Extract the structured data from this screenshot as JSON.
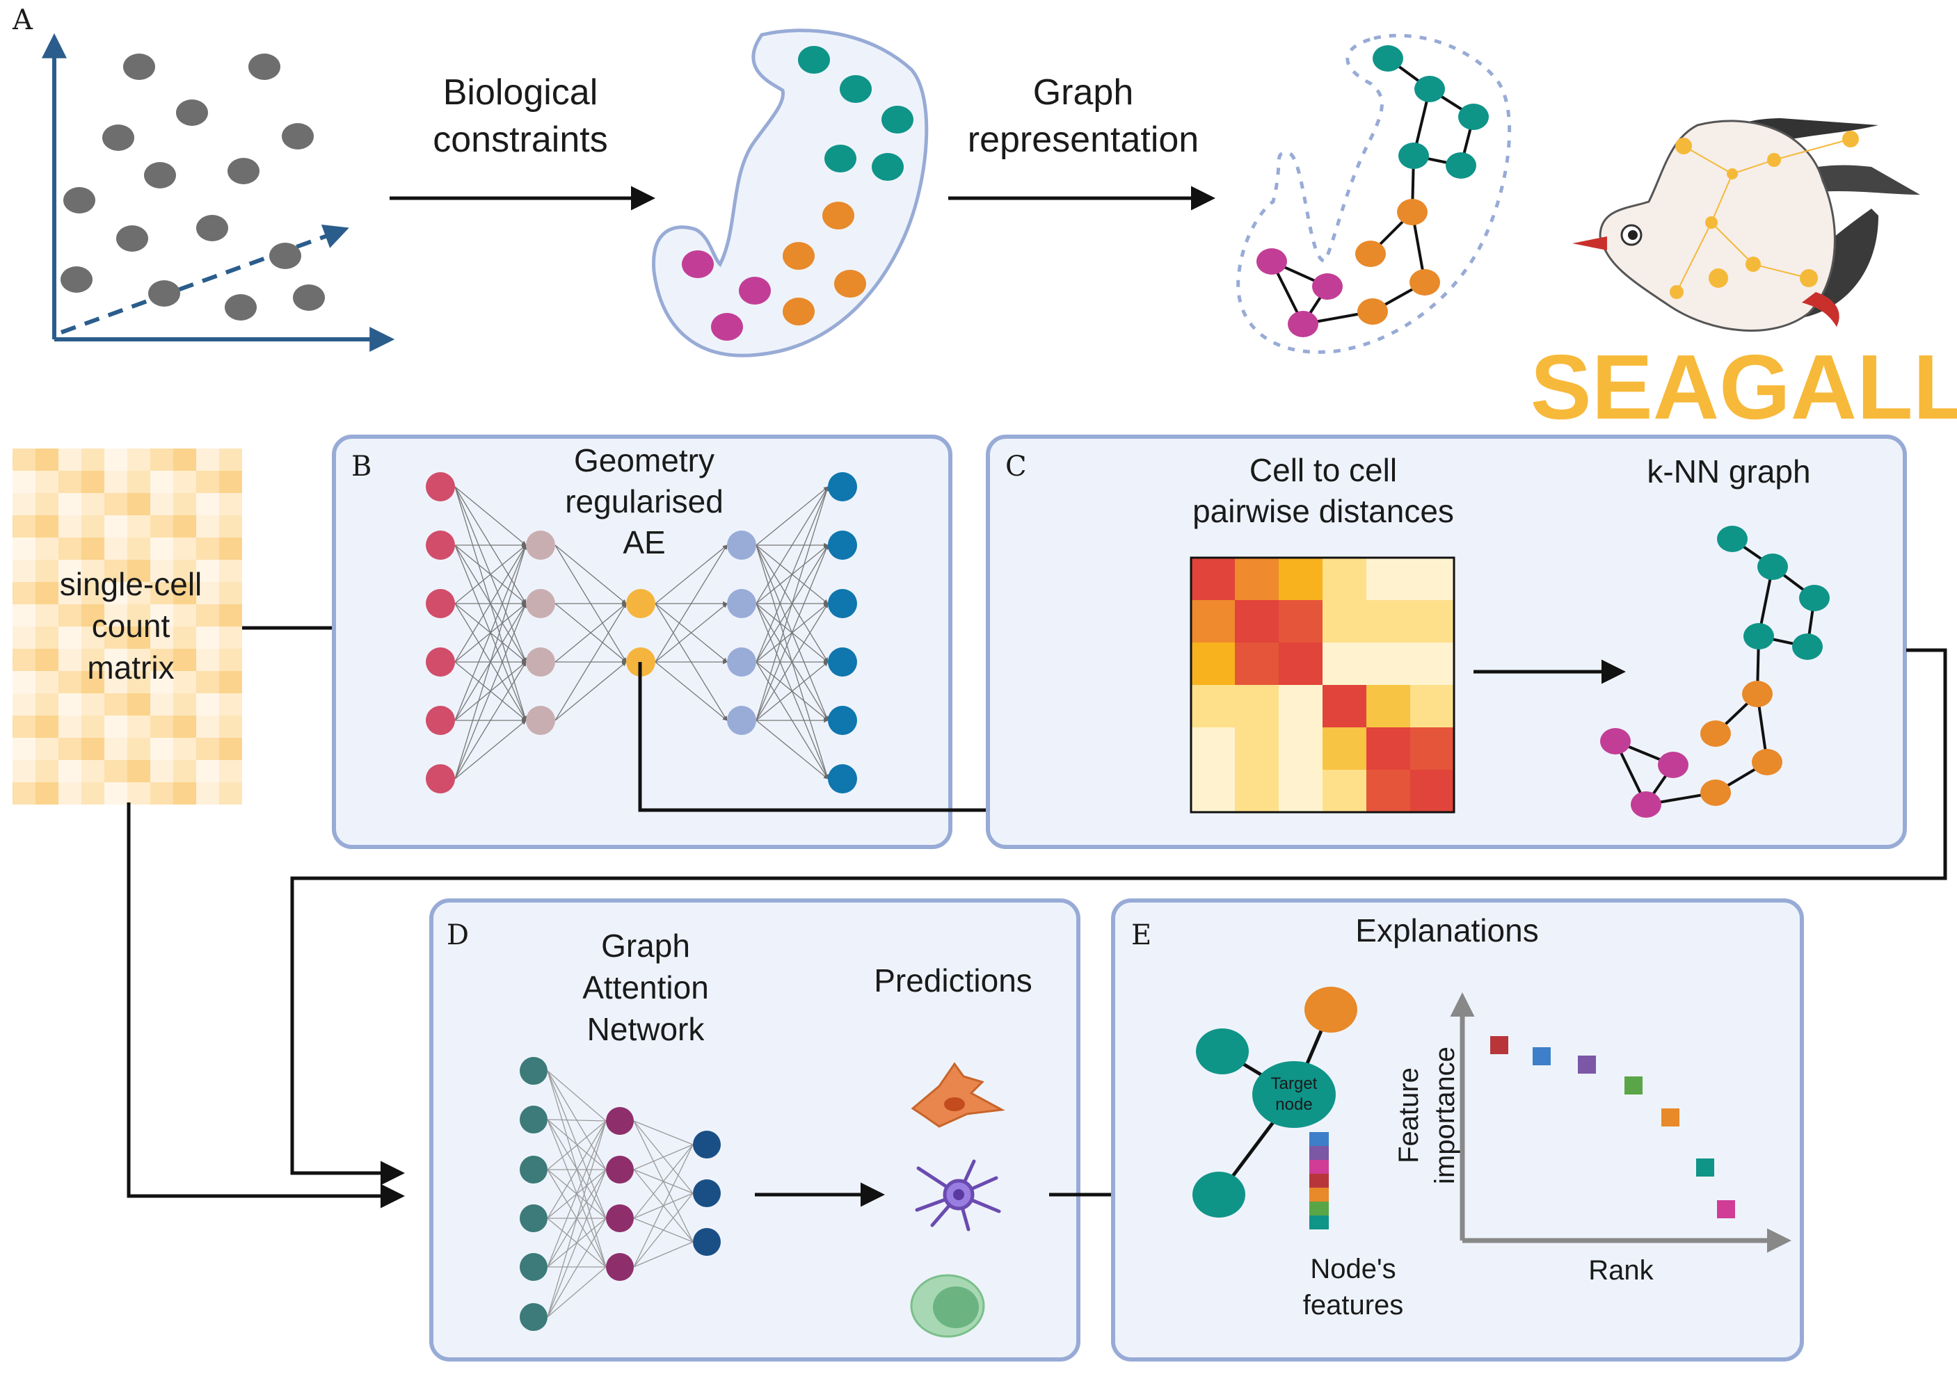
{
  "panel_letters": {
    "a": "A",
    "b": "B",
    "c": "C",
    "d": "D",
    "e": "E"
  },
  "panel_a": {
    "arrow1_line1": "Biological",
    "arrow1_line2": "constraints",
    "arrow2_line1": "Graph",
    "arrow2_line2": "representation",
    "brand": "SEAGALL"
  },
  "input": {
    "line1": "single-cell",
    "line2": "count",
    "line3": "matrix"
  },
  "panel_b": {
    "title_line1": "Geometry",
    "title_line2": "regularised",
    "title_line3": "AE"
  },
  "panel_c": {
    "distances_line1": "Cell to cell",
    "distances_line2": "pairwise distances",
    "graph_title": "k-NN graph"
  },
  "panel_d": {
    "title_line1": "Graph",
    "title_line2": "Attention",
    "title_line3": "Network",
    "predictions": "Predictions"
  },
  "panel_e": {
    "title": "Explanations",
    "target_line1": "Target",
    "target_line2": "node",
    "features_line1": "Node's",
    "features_line2": "features",
    "ylabel_line1": "Feature",
    "ylabel_line2": "importance",
    "xlabel": "Rank"
  },
  "colors": {
    "panel_fill": "#eef3fb",
    "panel_border": "#98abd6",
    "teal": "#0f9488",
    "orange": "#e8892a",
    "magenta": "#c23e96",
    "gray_points": "#6e6e6e",
    "axis_blue": "#2b5d8c",
    "brand_yellow": "#f7b93a"
  }
}
